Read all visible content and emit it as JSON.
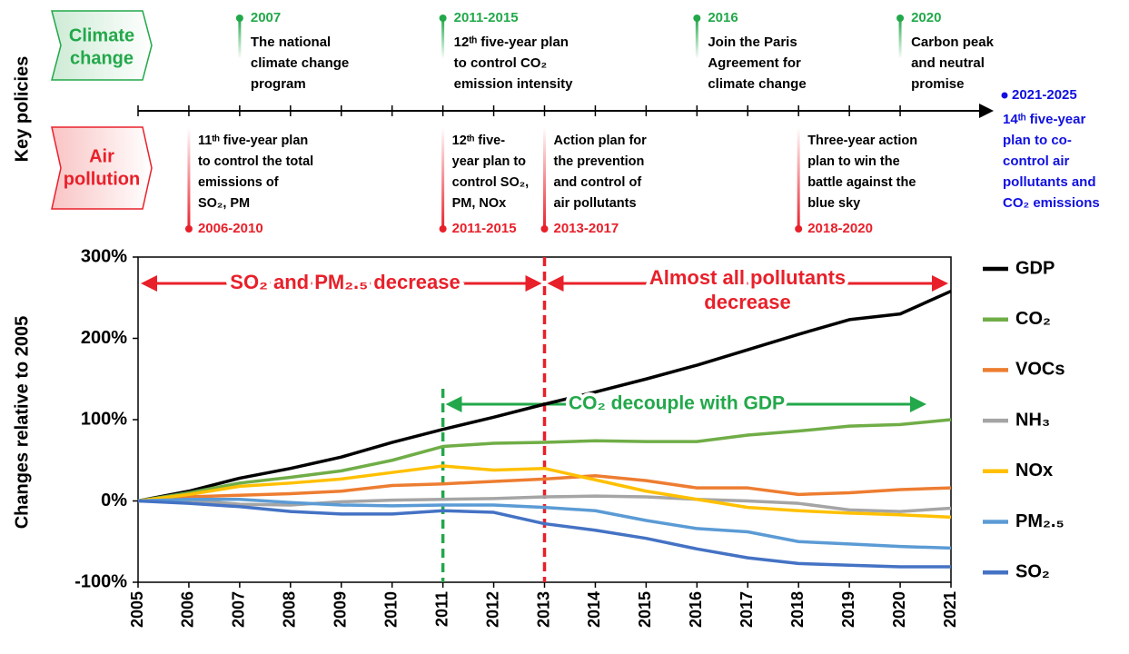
{
  "timeline": {
    "title": "Key policies",
    "climate": {
      "label": [
        "Climate",
        "change"
      ],
      "color": "#22a84a",
      "events": [
        {
          "year": "2007",
          "text": [
            "The national",
            "climate change",
            "program"
          ]
        },
        {
          "year": "2011-2015",
          "text": [
            "12ᵗʰ five-year plan",
            "to control CO₂",
            "emission intensity"
          ]
        },
        {
          "year": "2016",
          "text": [
            "Join the Paris",
            "Agreement for",
            "climate change"
          ]
        },
        {
          "year": "2020",
          "text": [
            "Carbon peak",
            "and neutral",
            "promise"
          ]
        }
      ]
    },
    "air": {
      "label": [
        "Air",
        "pollution"
      ],
      "color": "#e8202a",
      "events": [
        {
          "year": "2006-2010",
          "text": [
            "11ᵗʰ five-year plan",
            "to control the total",
            "emissions of",
            "SO₂, PM"
          ]
        },
        {
          "year": "2011-2015",
          "text": [
            "12ᵗʰ five-",
            "year plan to",
            "control SO₂,",
            "PM, NOx"
          ]
        },
        {
          "year": "2013-2017",
          "text": [
            "Action plan for",
            "the prevention",
            "and control of",
            "air pollutants"
          ]
        },
        {
          "year": "2018-2020",
          "text": [
            "Three-year action",
            "plan to win the",
            "battle against the",
            "blue sky"
          ]
        }
      ]
    },
    "future": {
      "year": "2021-2025",
      "color": "#1010e0",
      "text": [
        "14ᵗʰ five-year",
        "plan to co-",
        "control air",
        "pollutants and",
        "CO₂ emissions"
      ]
    }
  },
  "chart_data": {
    "type": "line",
    "ylabel": "Changes relative to 2005",
    "x": [
      2005,
      2006,
      2007,
      2008,
      2009,
      2010,
      2011,
      2012,
      2013,
      2014,
      2015,
      2016,
      2017,
      2018,
      2019,
      2020,
      2021
    ],
    "xlim": [
      2005,
      2021
    ],
    "xticks": [
      2005,
      2006,
      2007,
      2008,
      2009,
      2010,
      2011,
      2012,
      2013,
      2014,
      2015,
      2016,
      2017,
      2018,
      2019,
      2020,
      2021
    ],
    "ylim": [
      -100,
      300
    ],
    "yticks": [
      {
        "value": -100,
        "label": "-100%"
      },
      {
        "value": 0,
        "label": "0%"
      },
      {
        "value": 100,
        "label": "100%"
      },
      {
        "value": 200,
        "label": "200%"
      },
      {
        "value": 300,
        "label": "300%"
      }
    ],
    "series": [
      {
        "name": "GDP",
        "color": "#000000",
        "values": [
          0,
          12,
          28,
          40,
          54,
          72,
          88,
          103,
          119,
          134,
          150,
          167,
          186,
          205,
          223,
          230,
          258
        ]
      },
      {
        "name": "CO₂",
        "color": "#70ad47",
        "values": [
          0,
          10,
          22,
          29,
          37,
          50,
          67,
          71,
          72,
          74,
          73,
          73,
          81,
          86,
          92,
          94,
          100
        ]
      },
      {
        "name": "VOCs",
        "color": "#ed7d31",
        "values": [
          0,
          5,
          7,
          9,
          12,
          19,
          21,
          24,
          27,
          31,
          25,
          16,
          16,
          8,
          10,
          14,
          16
        ]
      },
      {
        "name": "NH₃",
        "color": "#a5a5a5",
        "values": [
          0,
          1,
          -4,
          -5,
          -1,
          1,
          2,
          3,
          5,
          6,
          5,
          2,
          0,
          -3,
          -11,
          -13,
          -9
        ]
      },
      {
        "name": "NOx",
        "color": "#ffc000",
        "values": [
          0,
          8,
          18,
          22,
          27,
          35,
          43,
          38,
          40,
          26,
          12,
          2,
          -8,
          -12,
          -15,
          -17,
          -20
        ]
      },
      {
        "name": "PM₂.₅",
        "color": "#5b9bd5",
        "values": [
          0,
          2,
          2,
          -2,
          -5,
          -6,
          -5,
          -5,
          -8,
          -12,
          -24,
          -34,
          -38,
          -50,
          -53,
          -56,
          -58
        ]
      },
      {
        "name": "SO₂",
        "color": "#4472c4",
        "values": [
          0,
          -3,
          -7,
          -13,
          -16,
          -16,
          -12,
          -14,
          -28,
          -36,
          -46,
          -59,
          -70,
          -77,
          -79,
          -81,
          -81
        ]
      }
    ],
    "annotations": [
      {
        "text": [
          "SO₂ and PM₂.₅ decrease"
        ],
        "color": "#e8202a"
      },
      {
        "text": [
          "Almost all pollutants",
          "decrease"
        ],
        "color": "#e8202a"
      },
      {
        "text": [
          "CO₂ decouple with GDP"
        ],
        "color": "#22a84a"
      }
    ]
  }
}
